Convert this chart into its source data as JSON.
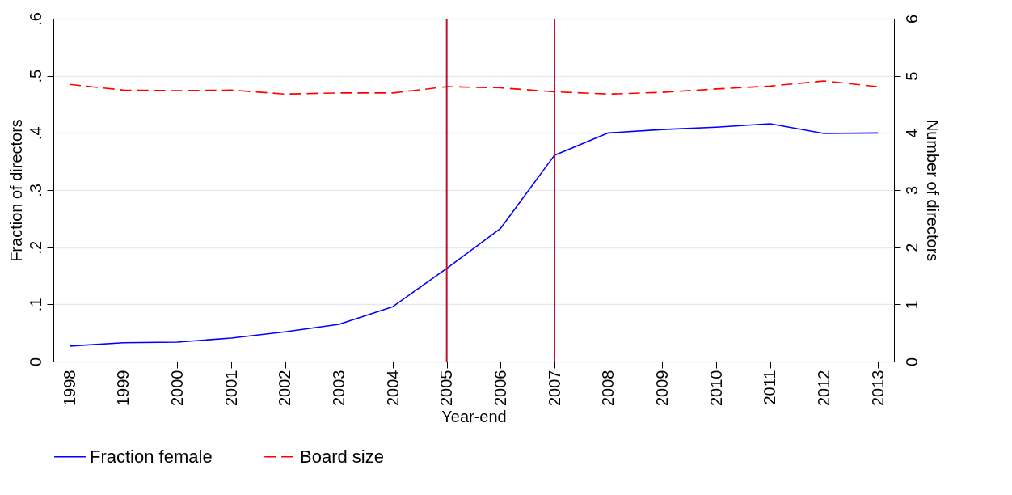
{
  "chart_data": {
    "type": "line",
    "xlabel": "Year-end",
    "ylabel": "Fraction of directors",
    "y2label": "Number of directors",
    "x": [
      1998,
      1999,
      2000,
      2001,
      2002,
      2003,
      2004,
      2005,
      2006,
      2007,
      2008,
      2009,
      2010,
      2011,
      2012,
      2013
    ],
    "series": [
      {
        "name": "Fraction female",
        "color": "#0000ff",
        "line_style": "solid",
        "values": [
          0.027,
          0.033,
          0.034,
          0.041,
          0.052,
          0.065,
          0.096,
          0.163,
          0.233,
          0.361,
          0.4,
          0.406,
          0.41,
          0.416,
          0.399,
          0.4
        ]
      },
      {
        "name": "Board size",
        "color": "#ff0000",
        "line_style": "dashed",
        "axis": "y2",
        "values": [
          4.85,
          4.75,
          4.74,
          4.75,
          4.68,
          4.7,
          4.7,
          4.81,
          4.79,
          4.72,
          4.68,
          4.71,
          4.77,
          4.82,
          4.91,
          4.81
        ]
      }
    ],
    "xlim": [
      1997.7,
      2013.3
    ],
    "xticks": [
      1998,
      1999,
      2000,
      2001,
      2002,
      2003,
      2004,
      2005,
      2006,
      2007,
      2008,
      2009,
      2010,
      2011,
      2012,
      2013
    ],
    "ylim": [
      0,
      0.6
    ],
    "yticks": [
      0,
      {
        "value": 0.1,
        "label": ".1"
      },
      {
        "value": 0.2,
        "label": ".2"
      },
      {
        "value": 0.3,
        "label": ".3"
      },
      {
        "value": 0.4,
        "label": ".4"
      },
      {
        "value": 0.5,
        "label": ".5"
      },
      {
        "value": 0.6,
        "label": ".6"
      }
    ],
    "y2lim": [
      0,
      6
    ],
    "y2ticks": [
      0,
      1,
      2,
      3,
      4,
      5,
      6
    ],
    "ref_lines": [
      {
        "axis": "x",
        "value": 2005,
        "color": "#c0102e"
      },
      {
        "axis": "x",
        "value": 2007,
        "color": "#c0102e"
      }
    ],
    "grid": "y",
    "legend": "bottom",
    "marker": "none"
  }
}
